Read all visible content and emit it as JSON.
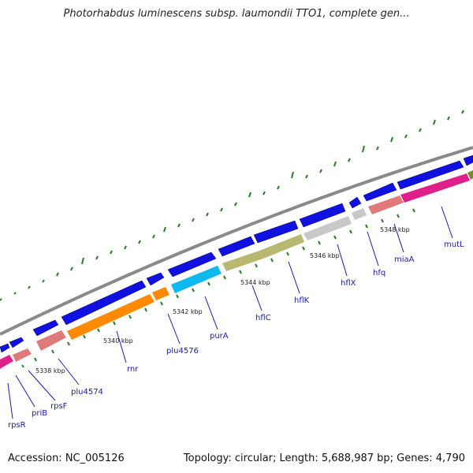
{
  "title": "Photorhabdus luminescens subsp. laumondii TTO1, complete gen...",
  "footer": {
    "accession": "Accession: NC_005126",
    "summary": "Topology: circular; Length: 5,688,987 bp; Genes: 4,790"
  },
  "colors": {
    "backbone": "#8a8a8a",
    "forward_gene": "#1010e0",
    "tick": "#2a7a2a",
    "label": "#1a1aa8"
  },
  "ticks": [
    "5338 kbp",
    "5340 kbp",
    "5342 kbp",
    "5344 kbp",
    "5346 kbp",
    "5348 kbp"
  ],
  "gene_labels": [
    "rpsR",
    "priB",
    "rpsF",
    "plu4574",
    "rnr",
    "plu4576",
    "purA",
    "hflC",
    "hflK",
    "hflX",
    "hfq",
    "miaA",
    "mutL"
  ]
}
